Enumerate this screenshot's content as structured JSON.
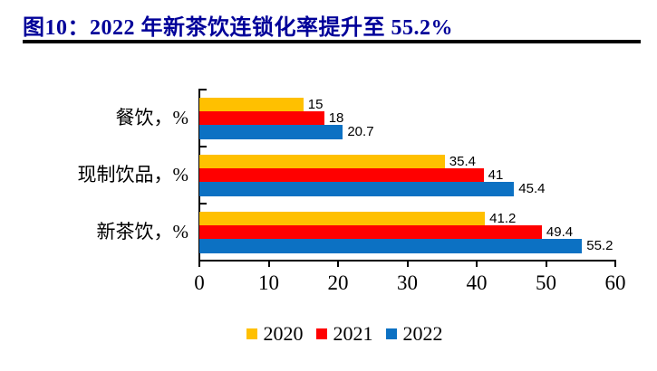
{
  "figure": {
    "title": "图10：2022 年新茶饮连锁化率提升至 55.2%",
    "title_color": "#000099",
    "underline_color": "#000000"
  },
  "chart_data": {
    "type": "bar",
    "orientation": "horizontal",
    "categories": [
      "餐饮，%",
      "现制饮品，%",
      "新茶饮，%"
    ],
    "series": [
      {
        "name": "2020",
        "color": "#FFC000",
        "values": [
          15,
          35.4,
          41.2
        ]
      },
      {
        "name": "2021",
        "color": "#FF0000",
        "values": [
          18,
          41,
          49.4
        ]
      },
      {
        "name": "2022",
        "color": "#0C71C3",
        "values": [
          20.7,
          45.4,
          55.2
        ]
      }
    ],
    "xlim": [
      0,
      60
    ],
    "x_ticks": [
      "0",
      "10",
      "20",
      "30",
      "40",
      "50",
      "60"
    ],
    "grid": false,
    "legend_position": "bottom",
    "value_labels_shown": true,
    "axis_color": "#000000",
    "text_color": "#000000"
  }
}
